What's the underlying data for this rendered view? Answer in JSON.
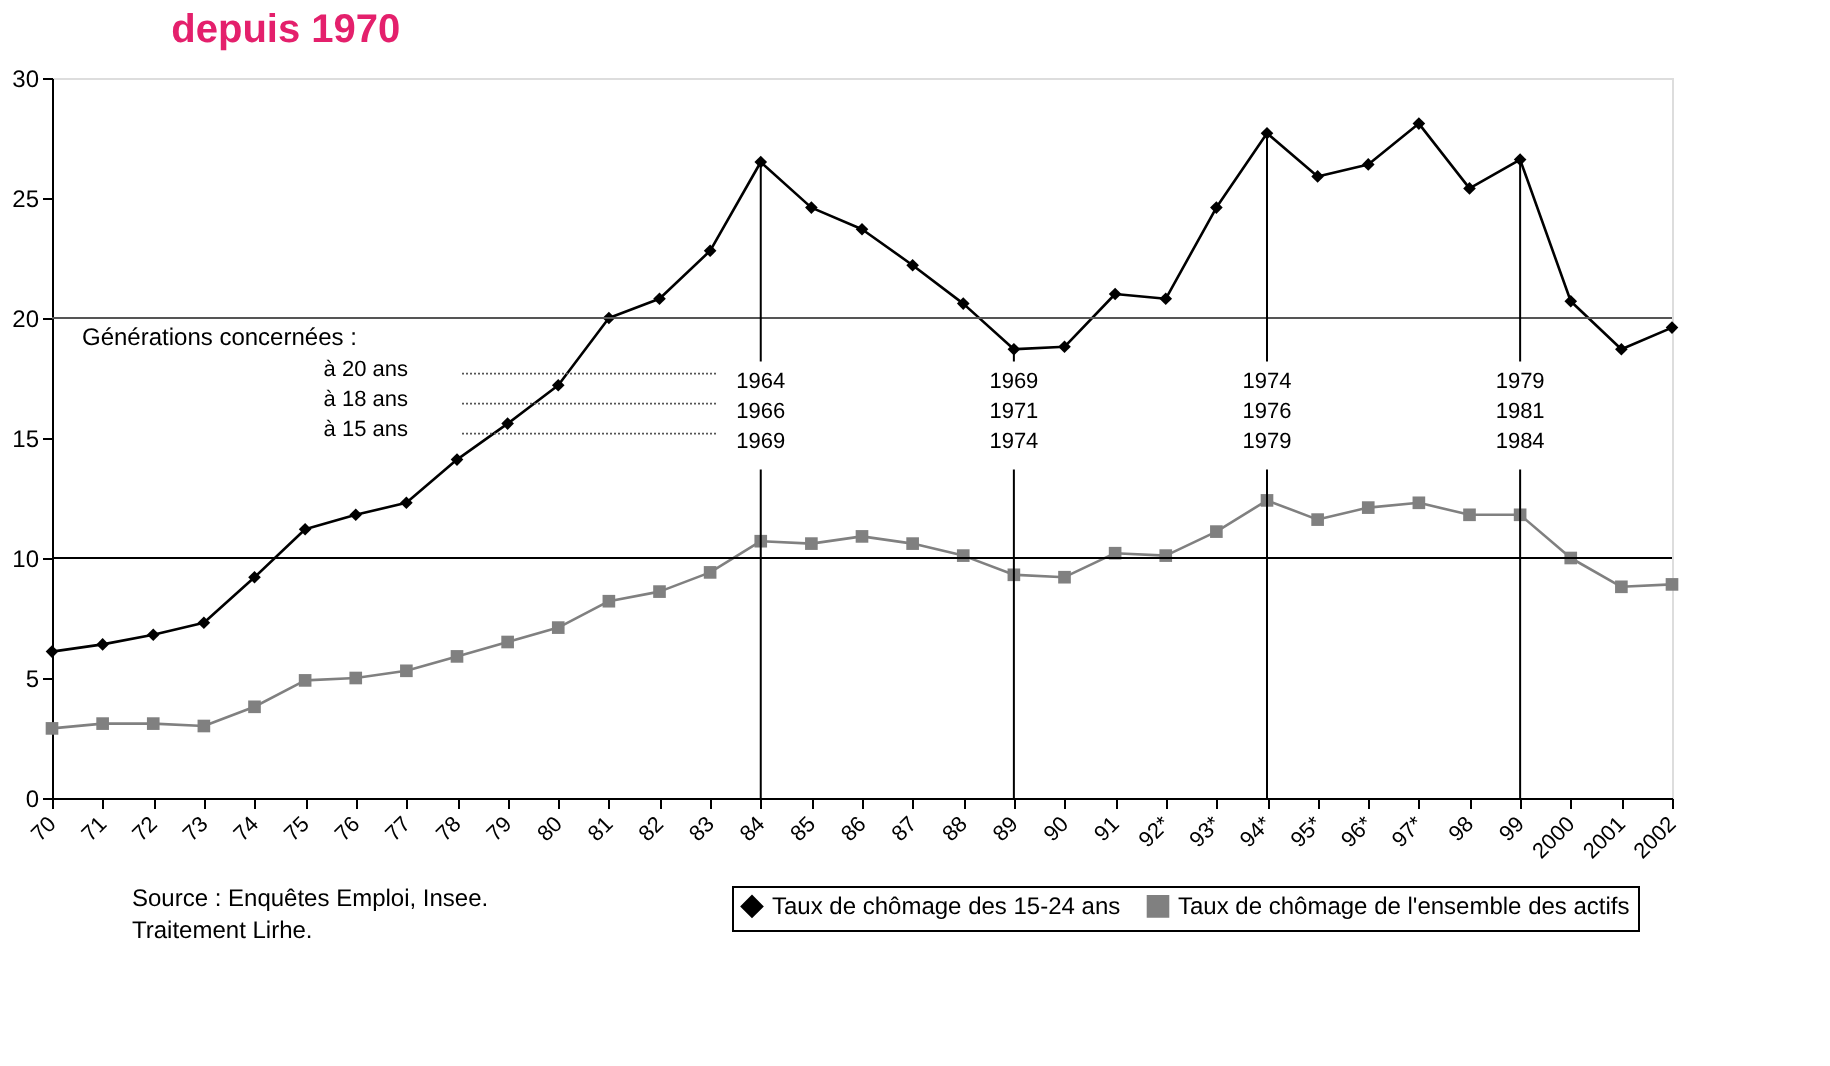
{
  "chart_data": {
    "type": "line",
    "title": "depuis 1970",
    "categories": [
      "70",
      "71",
      "72",
      "73",
      "74",
      "75",
      "76",
      "77",
      "78",
      "79",
      "80",
      "81",
      "82",
      "83",
      "84",
      "85",
      "86",
      "87",
      "88",
      "89",
      "90",
      "91",
      "92*",
      "93*",
      "94*",
      "95*",
      "96*",
      "97*",
      "98",
      "99",
      "2000",
      "2001",
      "2002"
    ],
    "series": [
      {
        "name": "Taux de chômage des 15-24 ans",
        "color": "#000000",
        "marker": "diamond",
        "values": [
          6.1,
          6.4,
          6.8,
          7.3,
          9.2,
          11.2,
          11.8,
          12.3,
          14.1,
          15.6,
          17.2,
          20.0,
          20.8,
          22.8,
          26.5,
          24.6,
          23.7,
          22.2,
          20.6,
          18.7,
          18.8,
          21.0,
          20.8,
          24.6,
          27.7,
          25.9,
          26.4,
          28.1,
          25.4,
          26.6,
          20.7,
          18.7,
          19.6
        ]
      },
      {
        "name": "Taux de chômage de l'ensemble des actifs",
        "color": "#808080",
        "marker": "square",
        "values": [
          2.9,
          3.1,
          3.1,
          3.0,
          3.8,
          4.9,
          5.0,
          5.3,
          5.9,
          6.5,
          7.1,
          8.2,
          8.6,
          9.4,
          10.7,
          10.6,
          10.9,
          10.6,
          10.1,
          9.3,
          9.2,
          10.2,
          10.1,
          11.1,
          12.4,
          11.6,
          12.1,
          12.3,
          11.8,
          11.8,
          10.0,
          8.8,
          8.9
        ]
      }
    ],
    "ylim": [
      0,
      30
    ],
    "yticks": [
      0,
      5,
      10,
      15,
      20,
      25,
      30
    ],
    "ref_lines": [
      {
        "axis": "y",
        "value": 10,
        "color": "#000000"
      },
      {
        "axis": "y",
        "value": 20,
        "color": "#555555"
      },
      {
        "axis": "x",
        "value": "84",
        "label": "1964\n1966\n1969",
        "color": "#000000"
      },
      {
        "axis": "x",
        "value": "89",
        "label": "1969\n1971\n1974",
        "color": "#000000"
      },
      {
        "axis": "x",
        "value": "94*",
        "label": "1974\n1976\n1979",
        "color": "#000000"
      },
      {
        "axis": "x",
        "value": "99",
        "label": "1979\n1981\n1984",
        "color": "#000000"
      }
    ],
    "annotations": [
      "Générations concernées :",
      "à  20 ans",
      "à 18 ans",
      "à 15 ans",
      "Source : Enquêtes Emploi, Insee.",
      "Traitement Lirhe."
    ],
    "legend": "bottom",
    "grid": false
  }
}
